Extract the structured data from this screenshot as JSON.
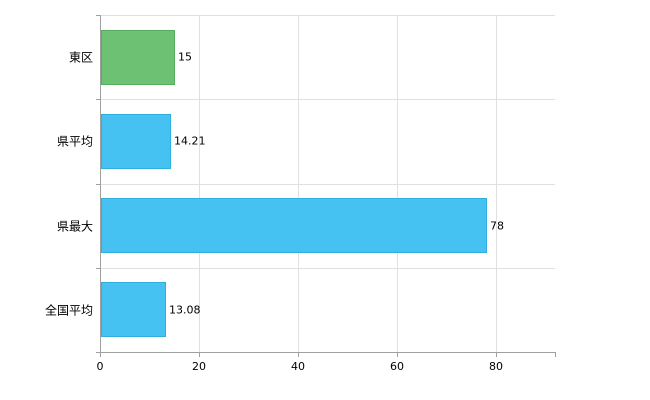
{
  "chart_data": {
    "type": "bar",
    "orientation": "horizontal",
    "title": "",
    "xlabel": "",
    "ylabel": "",
    "categories": [
      "東区",
      "県平均",
      "県最大",
      "全国平均"
    ],
    "values": [
      15,
      14.21,
      78,
      13.08
    ],
    "value_labels": [
      "15",
      "14.21",
      "78",
      "13.08"
    ],
    "bar_colors": [
      "#6cc173",
      "#45c2f1",
      "#45c2f1",
      "#45c2f1"
    ],
    "bar_border_colors": [
      "#55ad5e",
      "#30aedd",
      "#30aedd",
      "#30aedd"
    ],
    "xlim": [
      0,
      92
    ],
    "xticks": [
      0,
      20,
      40,
      60,
      80
    ],
    "xtick_labels": [
      "0",
      "20",
      "40",
      "60",
      "80"
    ],
    "grid": true,
    "legend": "none",
    "background": "#ffffff"
  }
}
